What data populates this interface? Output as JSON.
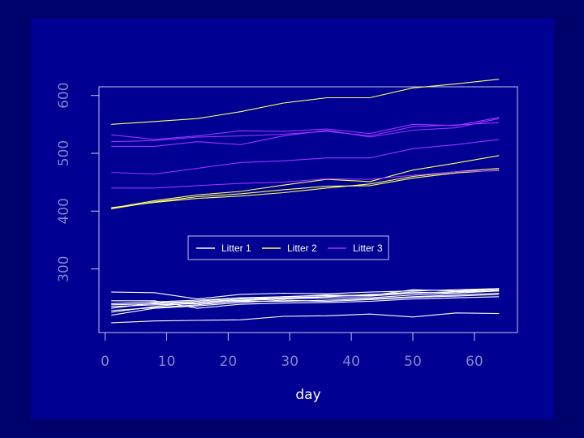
{
  "chart_data": {
    "type": "line",
    "title": "",
    "xlabel": "day",
    "ylabel": "",
    "xlim": [
      -1,
      67
    ],
    "ylim": [
      190,
      615
    ],
    "xticks": [
      "0",
      "10",
      "20",
      "30",
      "40",
      "50",
      "60"
    ],
    "yticks": [
      "300",
      "400",
      "500",
      "600"
    ],
    "grid": false,
    "legend_position": "center",
    "background": "#000092",
    "page_background": "#00006a",
    "series": [
      {
        "name": "Litter 1",
        "color": "#ffffff",
        "lines": [
          {
            "x": [
              1,
              8,
              15,
              22,
              29,
              36,
              43,
              50,
              57,
              64
            ],
            "y": [
              207,
              210,
              211,
              212,
              218,
              219,
              222,
              217,
              224,
              223
            ]
          },
          {
            "x": [
              1,
              8,
              15,
              22,
              29,
              36,
              43,
              50,
              57,
              64
            ],
            "y": [
              220,
              232,
              236,
              242,
              246,
              244,
              247,
              251,
              253,
              256
            ]
          },
          {
            "x": [
              1,
              8,
              15,
              22,
              29,
              36,
              43,
              50,
              57,
              64
            ],
            "y": [
              228,
              233,
              238,
              245,
              248,
              250,
              250,
              255,
              258,
              262
            ]
          },
          {
            "x": [
              1,
              8,
              15,
              22,
              29,
              36,
              43,
              50,
              57,
              64
            ],
            "y": [
              235,
              238,
              240,
              244,
              244,
              246,
              248,
              252,
              255,
              258
            ]
          },
          {
            "x": [
              1,
              8,
              15,
              22,
              29,
              36,
              43,
              50,
              57,
              64
            ],
            "y": [
              245,
              245,
              232,
              239,
              241,
              242,
              244,
              248,
              250,
              252
            ]
          },
          {
            "x": [
              1,
              8,
              15,
              22,
              29,
              36,
              43,
              50,
              57,
              64
            ],
            "y": [
              240,
              243,
              246,
              250,
              252,
              254,
              253,
              258,
              260,
              262
            ]
          },
          {
            "x": [
              1,
              8,
              15,
              22,
              29,
              36,
              43,
              50,
              57,
              64
            ],
            "y": [
              260,
              259,
              248,
              256,
              258,
              257,
              260,
              262,
              264,
              266
            ]
          },
          {
            "x": [
              1,
              8,
              15,
              22,
              29,
              36,
              43,
              50,
              57,
              64
            ],
            "y": [
              232,
              241,
              244,
              250,
              248,
              252,
              255,
              260,
              258,
              263
            ]
          },
          {
            "x": [
              1,
              8,
              15,
              22,
              29,
              36,
              43,
              50,
              57,
              64
            ],
            "y": [
              225,
              235,
              242,
              248,
              252,
              255,
              254,
              264,
              262,
              266
            ]
          },
          {
            "x": [
              1,
              8,
              15,
              22,
              29,
              36,
              43,
              50,
              57,
              64
            ],
            "y": [
              238,
              240,
              242,
              246,
              250,
              252,
              256,
              258,
              261,
              264
            ]
          }
        ]
      },
      {
        "name": "Litter 2",
        "color": "#ffff66",
        "lines": [
          {
            "x": [
              1,
              8,
              15,
              22,
              29,
              36,
              43,
              50,
              57,
              64
            ],
            "y": [
              550,
              555,
              560,
              572,
              587,
              596,
              596,
              613,
              620,
              628
            ]
          },
          {
            "x": [
              1,
              8,
              15,
              22,
              29,
              36,
              43,
              50,
              57,
              64
            ],
            "y": [
              405,
              418,
              428,
              434,
              445,
              455,
              451,
              471,
              483,
              496
            ]
          },
          {
            "x": [
              1,
              8,
              15,
              22,
              29,
              36,
              43,
              50,
              57,
              64
            ],
            "y": [
              404,
              416,
              425,
              430,
              437,
              443,
              444,
              457,
              466,
              471
            ]
          },
          {
            "x": [
              1,
              8,
              15,
              22,
              29,
              36,
              43,
              50,
              57,
              64
            ],
            "y": [
              406,
              415,
              422,
              426,
              432,
              440,
              447,
              460,
              468,
              474
            ]
          }
        ]
      },
      {
        "name": "Litter 3",
        "color": "#9d33ff",
        "lines": [
          {
            "x": [
              1,
              8,
              15,
              22,
              29,
              36,
              43,
              50,
              57,
              64
            ],
            "y": [
              532,
              524,
              530,
              539,
              538,
              542,
              534,
              550,
              548,
              562
            ]
          },
          {
            "x": [
              1,
              8,
              15,
              22,
              29,
              36,
              43,
              50,
              57,
              64
            ],
            "y": [
              512,
              512,
              520,
              515,
              530,
              540,
              528,
              540,
              544,
              560
            ]
          },
          {
            "x": [
              1,
              8,
              15,
              22,
              29,
              36,
              43,
              50,
              57,
              64
            ],
            "y": [
              520,
              522,
              528,
              530,
              533,
              538,
              530,
              546,
              549,
              553
            ]
          },
          {
            "x": [
              1,
              8,
              15,
              22,
              29,
              36,
              43,
              50,
              57,
              64
            ],
            "y": [
              467,
              464,
              474,
              484,
              487,
              492,
              492,
              508,
              515,
              524
            ]
          },
          {
            "x": [
              1,
              8,
              15,
              22,
              29,
              36,
              43,
              50,
              57,
              64
            ],
            "y": [
              440,
              440,
              444,
              448,
              450,
              456,
              455,
              462,
              468,
              470
            ]
          }
        ]
      }
    ]
  }
}
